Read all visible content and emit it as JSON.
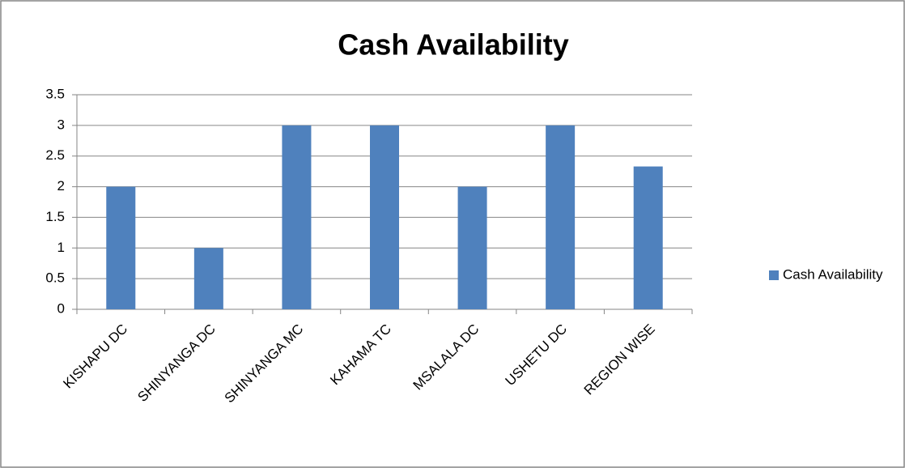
{
  "chart_data": {
    "type": "bar",
    "title": "Cash Availability",
    "categories": [
      "KISHAPU DC",
      "SHINYANGA DC",
      "SHINYANGA MC",
      "KAHAMA TC",
      "MSALALA DC",
      "USHETU DC",
      "REGION WISE"
    ],
    "series": [
      {
        "name": "Cash Availability",
        "color": "#4f81bd",
        "values": [
          2,
          1,
          3,
          3,
          2,
          3,
          2.33
        ]
      }
    ],
    "ylim": [
      0,
      3.5
    ],
    "yticks": [
      0,
      0.5,
      1,
      1.5,
      2,
      2.5,
      3,
      3.5
    ],
    "grid": true,
    "legend": "right"
  }
}
